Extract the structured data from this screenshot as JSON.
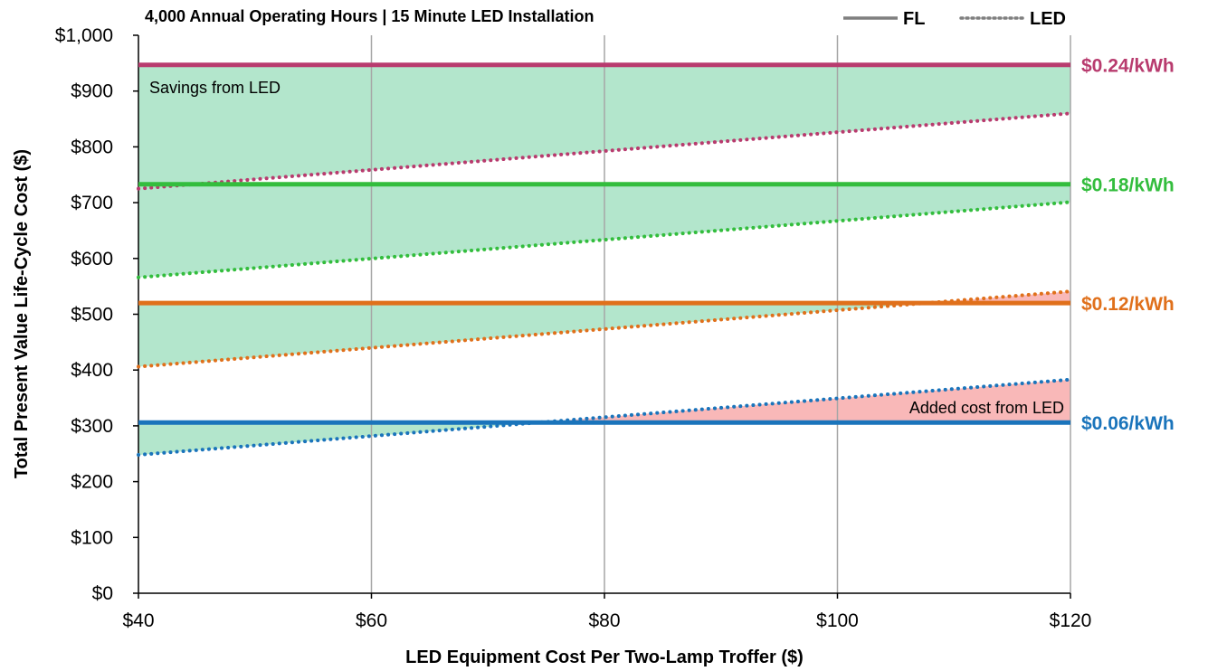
{
  "chart_data": {
    "type": "line",
    "title": "4,000 Annual Operating Hours | 15 Minute LED Installation",
    "xlabel": "LED Equipment Cost Per Two-Lamp Troffer ($)",
    "ylabel": "Total Present Value Life-Cycle Cost ($)",
    "xlim": [
      40,
      120
    ],
    "ylim": [
      0,
      1000
    ],
    "x_ticks": [
      40,
      60,
      80,
      100,
      120
    ],
    "x_tick_labels": [
      "$40",
      "$60",
      "$80",
      "$100",
      "$120"
    ],
    "y_ticks": [
      0,
      100,
      200,
      300,
      400,
      500,
      600,
      700,
      800,
      900,
      1000
    ],
    "y_tick_labels": [
      "$0",
      "$100",
      "$200",
      "$300",
      "$400",
      "$500",
      "$600",
      "$700",
      "$800",
      "$900",
      "$1,000"
    ],
    "vertical_grid": true,
    "horizontal_grid": false,
    "legend_position": "top-right",
    "legend": [
      {
        "label": "FL",
        "style": "solid"
      },
      {
        "label": "LED",
        "style": "dotted"
      }
    ],
    "series": [
      {
        "rate_label": "$0.24/kWh",
        "color": "#B83B6E",
        "fl": [
          947,
          947
        ],
        "led": [
          725,
          860
        ]
      },
      {
        "rate_label": "$0.18/kWh",
        "color": "#33BD3D",
        "fl": [
          733,
          733
        ],
        "led": [
          566,
          701
        ]
      },
      {
        "rate_label": "$0.12/kWh",
        "color": "#E0701B",
        "fl": [
          520,
          520
        ],
        "led": [
          406,
          541
        ]
      },
      {
        "rate_label": "$0.06/kWh",
        "color": "#1A74BB",
        "fl": [
          306,
          306
        ],
        "led": [
          248,
          383
        ]
      }
    ],
    "annotations": {
      "savings": "Savings from LED",
      "added_cost": "Added cost from LED"
    },
    "savings_fill_color": "#B3E6CC",
    "added_cost_fill_color": "#F9B8B8"
  }
}
